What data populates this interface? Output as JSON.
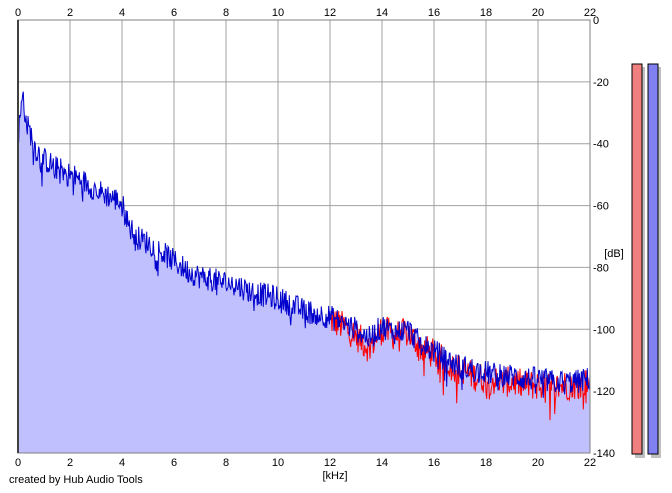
{
  "chart_data": {
    "type": "area",
    "xlabel": "[kHz]",
    "ylabel": "[dB]",
    "xlim": [
      0,
      22
    ],
    "ylim": [
      -140,
      0
    ],
    "x_ticks": [
      "0",
      "2",
      "4",
      "6",
      "8",
      "10",
      "12",
      "14",
      "16",
      "18",
      "20",
      "22"
    ],
    "y_ticks": [
      "0",
      "-20",
      "-40",
      "-60",
      "-80",
      "-100",
      "-120",
      "-140"
    ],
    "grid": true,
    "series": [
      {
        "color": "#0000cc",
        "fill": "#c0c0ff",
        "x": [
          0,
          0.1,
          0.2,
          0.3,
          0.5,
          0.7,
          1,
          1.5,
          2,
          2.5,
          3,
          3.5,
          4,
          4.2,
          4.5,
          5,
          5.5,
          6,
          6.5,
          7,
          7.5,
          8,
          8.5,
          9,
          9.5,
          10,
          10.5,
          11,
          11.5,
          12,
          12.5,
          13,
          13.5,
          14,
          14.5,
          15,
          15.5,
          16,
          16.5,
          17,
          17.5,
          18,
          18.5,
          19,
          19.5,
          20,
          20.5,
          21,
          21.5,
          22
        ],
        "y": [
          -38,
          -30,
          -24,
          -33,
          -37,
          -42,
          -45,
          -48,
          -50,
          -52,
          -55,
          -57,
          -59,
          -65,
          -70,
          -72,
          -75,
          -78,
          -81,
          -83,
          -84,
          -85,
          -86,
          -88,
          -89,
          -90,
          -92,
          -94,
          -95,
          -96,
          -98,
          -100,
          -103,
          -99,
          -101,
          -100,
          -105,
          -107,
          -110,
          -112,
          -113,
          -114,
          -115,
          -115,
          -116,
          -116,
          -117,
          -117,
          -117,
          -116
        ]
      },
      {
        "color": "#ff0000",
        "x": [
          12,
          12.5,
          13,
          13.5,
          14,
          14.5,
          15,
          15.5,
          16,
          16.5,
          17,
          17.5,
          18,
          18.5,
          19,
          19.5,
          20,
          20.5,
          21,
          21.5,
          22
        ],
        "y": [
          -97,
          -99,
          -102,
          -106,
          -100,
          -102,
          -101,
          -106,
          -108,
          -111,
          -113,
          -115,
          -116,
          -117,
          -117,
          -118,
          -118,
          -119,
          -118,
          -118,
          -117
        ]
      }
    ],
    "level_meters": [
      {
        "color": "#f08080"
      },
      {
        "color": "#8080f0"
      }
    ]
  },
  "footer": {
    "credit": "created by Hub Audio Tools"
  }
}
